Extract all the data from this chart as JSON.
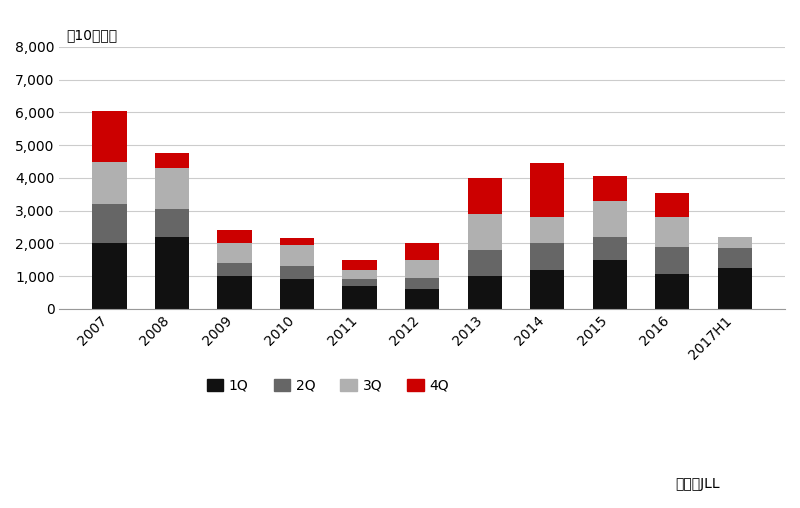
{
  "years": [
    "2007",
    "2008",
    "2009",
    "2010",
    "2011",
    "2012",
    "2013",
    "2014",
    "2015",
    "2016",
    "2017H1"
  ],
  "q1": [
    2000,
    2200,
    1000,
    900,
    700,
    600,
    1000,
    1200,
    1500,
    1050,
    1250
  ],
  "q2": [
    1200,
    850,
    400,
    400,
    200,
    350,
    800,
    800,
    700,
    850,
    600
  ],
  "q3": [
    1300,
    1250,
    600,
    650,
    300,
    550,
    1100,
    800,
    1100,
    900,
    350
  ],
  "q4": [
    1550,
    450,
    400,
    200,
    300,
    500,
    1100,
    1650,
    750,
    750,
    0
  ],
  "colors": {
    "1Q": "#111111",
    "2Q": "#666666",
    "3Q": "#b0b0b0",
    "4Q": "#cc0000"
  },
  "ylabel": "（10億円）",
  "ylim": [
    0,
    8000
  ],
  "yticks": [
    0,
    1000,
    2000,
    3000,
    4000,
    5000,
    6000,
    7000,
    8000
  ],
  "source_text": "出所：JLL",
  "grid_color": "#cccccc",
  "bar_width": 0.55
}
